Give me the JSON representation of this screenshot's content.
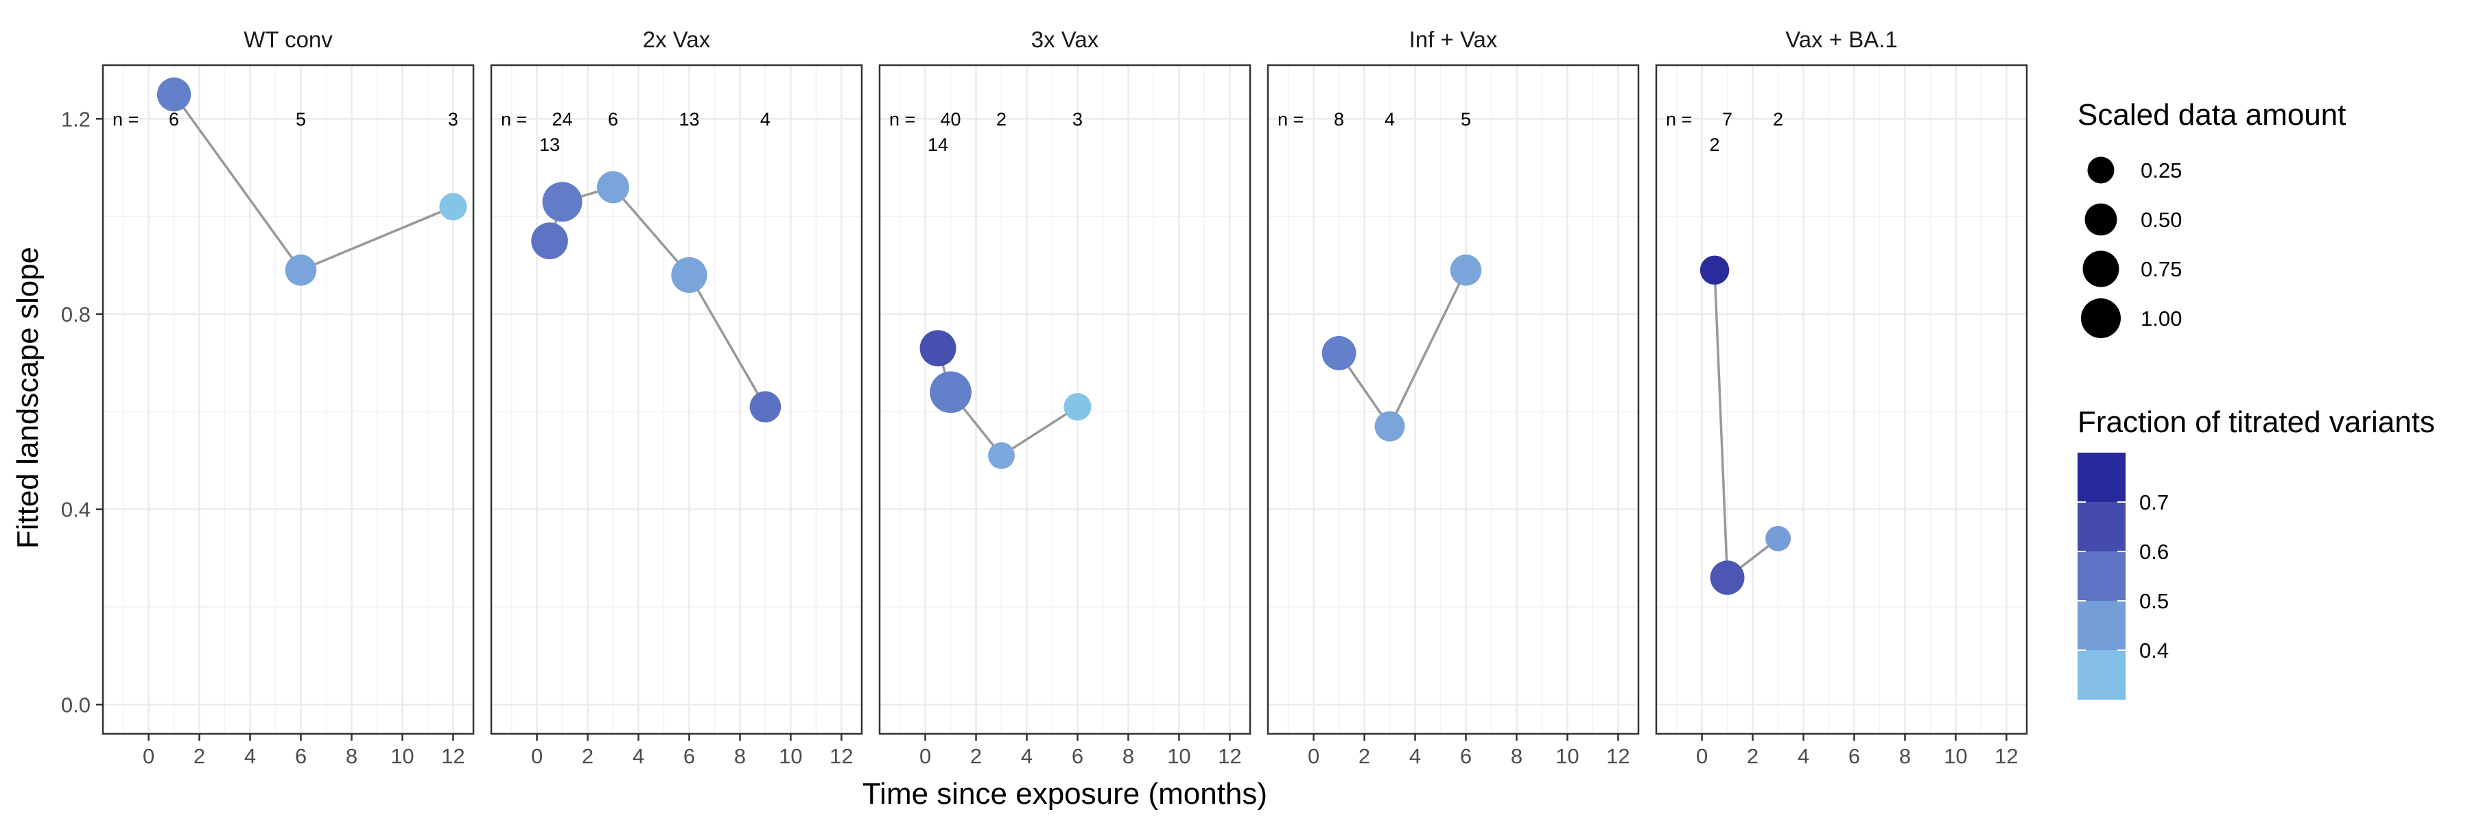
{
  "chart_data": {
    "type": "scatter",
    "panels": [
      {
        "title": "WT conv",
        "points": [
          {
            "x": 1,
            "y": 1.25,
            "size": 0.6,
            "fraction": 0.52
          },
          {
            "x": 6,
            "y": 0.89,
            "size": 0.45,
            "fraction": 0.43
          },
          {
            "x": 12,
            "y": 1.02,
            "size": 0.28,
            "fraction": 0.33
          }
        ],
        "counts": [
          {
            "x": 1,
            "text": "6",
            "row": 1
          },
          {
            "x": 6,
            "text": "5",
            "row": 1
          },
          {
            "x": 12,
            "text": "3",
            "row": 1
          }
        ]
      },
      {
        "title": "2x Vax",
        "points": [
          {
            "x": 0.5,
            "y": 0.95,
            "size": 0.78,
            "fraction": 0.55
          },
          {
            "x": 1,
            "y": 1.03,
            "size": 1.0,
            "fraction": 0.53
          },
          {
            "x": 3,
            "y": 1.06,
            "size": 0.5,
            "fraction": 0.43
          },
          {
            "x": 6,
            "y": 0.88,
            "size": 0.72,
            "fraction": 0.43
          },
          {
            "x": 9,
            "y": 0.61,
            "size": 0.45,
            "fraction": 0.56
          }
        ],
        "counts": [
          {
            "x": 1,
            "text": "24",
            "row": 1
          },
          {
            "x": 0.5,
            "text": "13",
            "row": 2
          },
          {
            "x": 3,
            "text": "6",
            "row": 1
          },
          {
            "x": 6,
            "text": "13",
            "row": 1
          },
          {
            "x": 9,
            "text": "4",
            "row": 1
          }
        ]
      },
      {
        "title": "3x Vax",
        "points": [
          {
            "x": 0.5,
            "y": 0.73,
            "size": 0.75,
            "fraction": 0.64
          },
          {
            "x": 1,
            "y": 0.64,
            "size": 1.15,
            "fraction": 0.52
          },
          {
            "x": 3,
            "y": 0.51,
            "size": 0.25,
            "fraction": 0.42
          },
          {
            "x": 6,
            "y": 0.61,
            "size": 0.28,
            "fraction": 0.33
          }
        ],
        "counts": [
          {
            "x": 1,
            "text": "40",
            "row": 1
          },
          {
            "x": 0.5,
            "text": "14",
            "row": 2
          },
          {
            "x": 3,
            "text": "2",
            "row": 1
          },
          {
            "x": 6,
            "text": "3",
            "row": 1
          }
        ]
      },
      {
        "title": "Inf + Vax",
        "points": [
          {
            "x": 1,
            "y": 0.72,
            "size": 0.62,
            "fraction": 0.52
          },
          {
            "x": 3,
            "y": 0.57,
            "size": 0.4,
            "fraction": 0.43
          },
          {
            "x": 6,
            "y": 0.89,
            "size": 0.45,
            "fraction": 0.43
          }
        ],
        "counts": [
          {
            "x": 1,
            "text": "8",
            "row": 1
          },
          {
            "x": 3,
            "text": "4",
            "row": 1
          },
          {
            "x": 6,
            "text": "5",
            "row": 1
          }
        ]
      },
      {
        "title": "Vax + BA.1",
        "points": [
          {
            "x": 0.5,
            "y": 0.89,
            "size": 0.35,
            "fraction": 0.74
          },
          {
            "x": 1,
            "y": 0.26,
            "size": 0.62,
            "fraction": 0.62
          },
          {
            "x": 3,
            "y": 0.34,
            "size": 0.2,
            "fraction": 0.45
          }
        ],
        "counts": [
          {
            "x": 1,
            "text": "7",
            "row": 1
          },
          {
            "x": 0.5,
            "text": "2",
            "row": 2
          },
          {
            "x": 3,
            "text": "2",
            "row": 1
          }
        ]
      }
    ],
    "n_prefix": "n =",
    "xlabel": "Time since exposure (months)",
    "ylabel": "Fitted landscape slope",
    "xlim": [
      -1.8,
      12.8
    ],
    "ylim": [
      -0.06,
      1.31
    ],
    "xticks": [
      0,
      2,
      4,
      6,
      8,
      10,
      12
    ],
    "yticks": [
      0.0,
      0.4,
      0.8,
      1.2
    ],
    "ytick_labels": [
      "0.0",
      "0.4",
      "0.8",
      "1.2"
    ],
    "grid": true,
    "line_color": "#999999",
    "size_legend": {
      "title": "Scaled data amount",
      "values": [
        0.25,
        0.5,
        0.75,
        1.0
      ],
      "labels": [
        "0.25",
        "0.50",
        "0.75",
        "1.00"
      ]
    },
    "color_legend": {
      "title": "Fraction of titrated variants",
      "range": [
        0.3,
        0.8
      ],
      "breaks": [
        0.7,
        0.6,
        0.5,
        0.4
      ],
      "labels": [
        "0.7",
        "0.6",
        "0.5",
        "0.4"
      ],
      "colors": [
        "#87CEEB",
        "#7BA7DC",
        "#5D74C4",
        "#3F41A8",
        "#191991"
      ]
    }
  }
}
